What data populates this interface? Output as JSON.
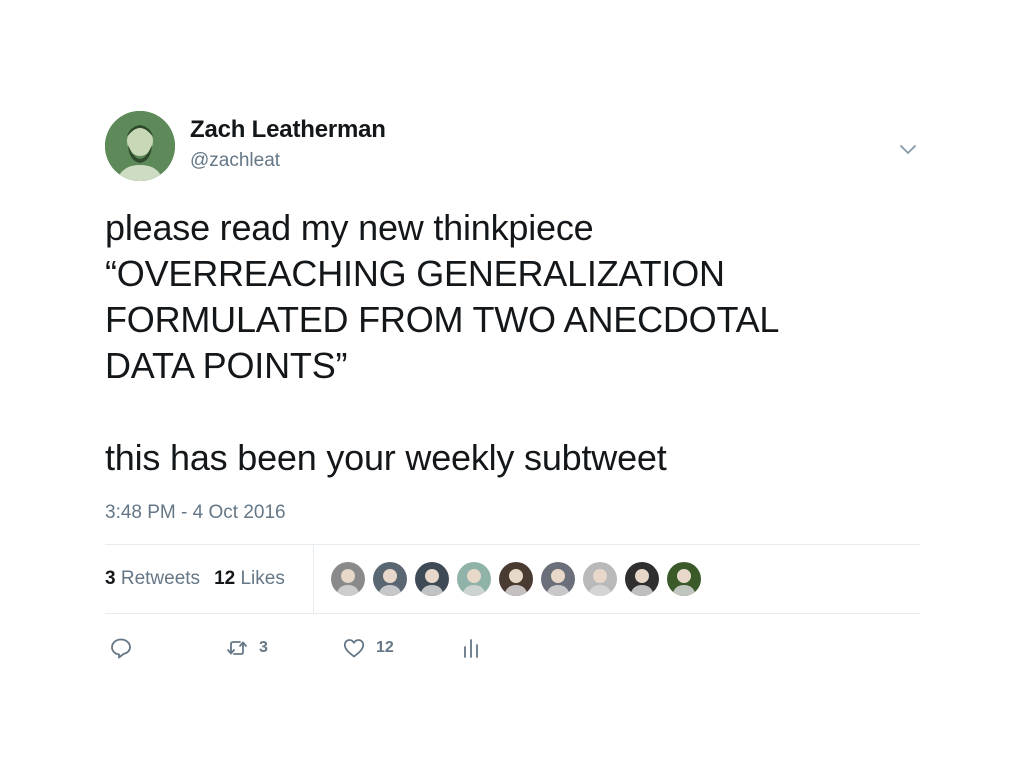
{
  "author": {
    "display_name": "Zach Leatherman",
    "handle": "@zachleat",
    "avatar_icon": "user-avatar"
  },
  "menu": {
    "icon": "chevron-down-icon"
  },
  "tweet": {
    "lines": [
      "please read my new thinkpiece",
      "“OVERREACHING GENERALIZATION",
      "FORMULATED FROM TWO ANECDOTAL",
      "DATA POINTS”"
    ],
    "closing_line": "this has been your weekly subtweet",
    "timestamp": "3:48 PM - 4 Oct 2016"
  },
  "stats": {
    "retweets_count": "3",
    "retweets_label": "Retweets",
    "likes_count": "12",
    "likes_label": "Likes"
  },
  "likers": [
    {
      "color": "#8a8a8a"
    },
    {
      "color": "#5b6673"
    },
    {
      "color": "#3e4a55"
    },
    {
      "color": "#8fb3a8"
    },
    {
      "color": "#4a3b32"
    },
    {
      "color": "#6a6f7a"
    },
    {
      "color": "#b9b9b9"
    },
    {
      "color": "#2f2f2f"
    },
    {
      "color": "#3a5a2a"
    }
  ],
  "actions": {
    "reply_icon": "reply-icon",
    "retweet_icon": "retweet-icon",
    "retweet_count": "3",
    "like_icon": "heart-icon",
    "like_count": "12",
    "analytics_icon": "analytics-icon"
  },
  "colors": {
    "text": "#14171a",
    "muted": "#657786",
    "border": "#e6ecf0"
  }
}
